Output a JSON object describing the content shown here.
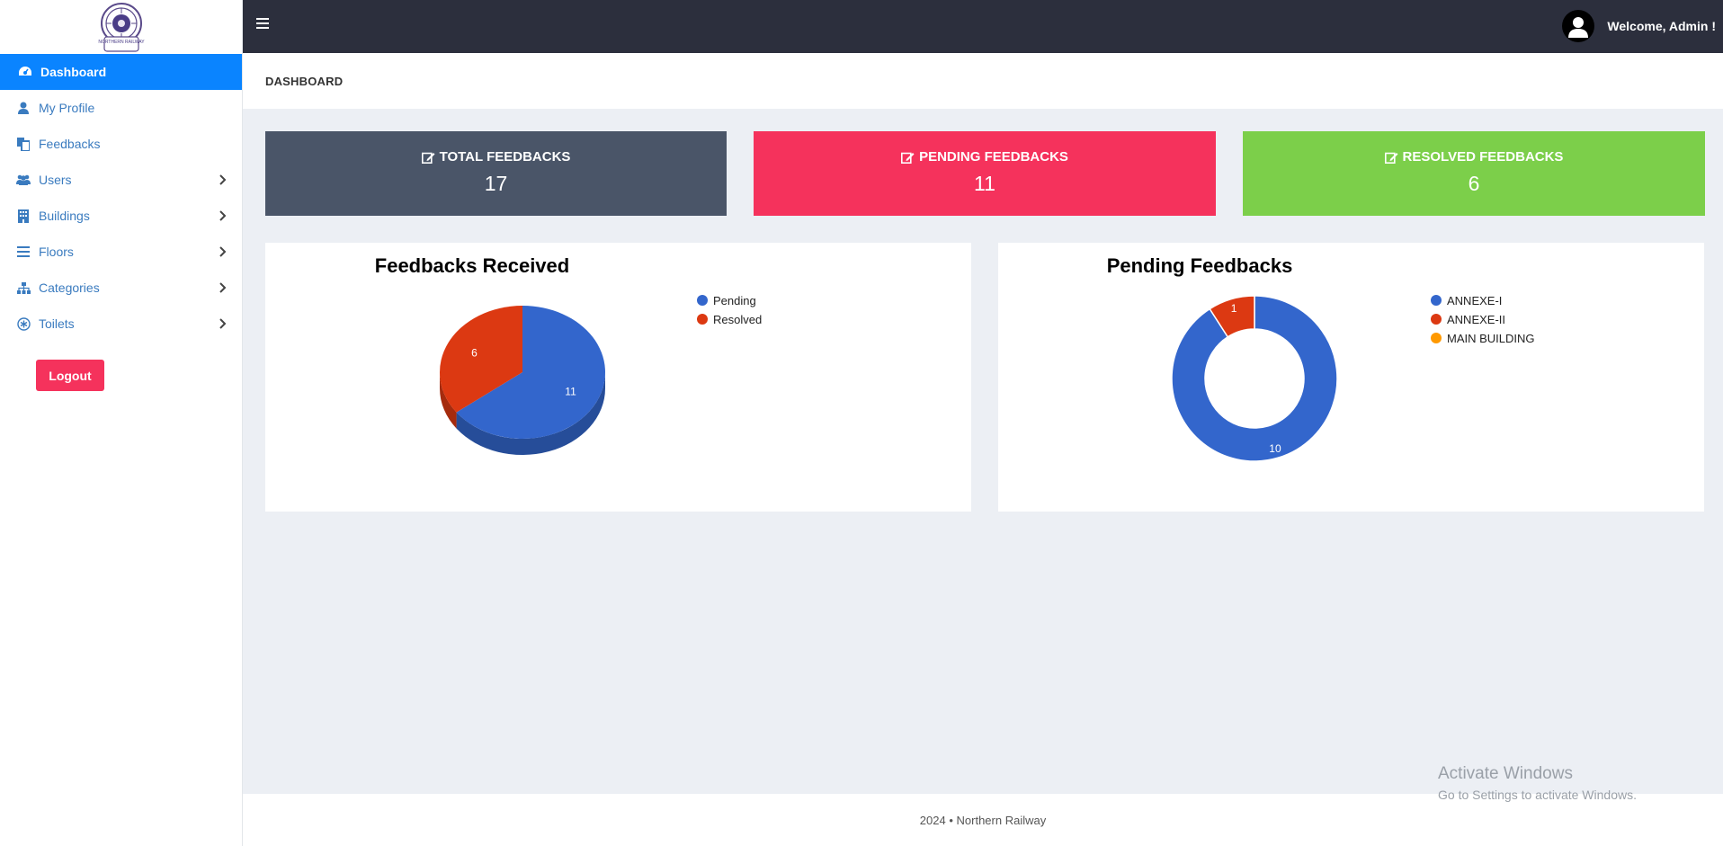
{
  "sidebar": {
    "logo_text": "NORTHERN RAILWAY",
    "items": [
      {
        "label": "Dashboard",
        "icon": "dashboard-icon",
        "active": true
      },
      {
        "label": "My Profile",
        "icon": "user-icon"
      },
      {
        "label": "Feedbacks",
        "icon": "copy-icon"
      },
      {
        "label": "Users",
        "icon": "users-icon",
        "has_submenu": true
      },
      {
        "label": "Buildings",
        "icon": "building-icon",
        "has_submenu": true
      },
      {
        "label": "Floors",
        "icon": "bars-icon",
        "has_submenu": true
      },
      {
        "label": "Categories",
        "icon": "sitemap-icon",
        "has_submenu": true
      },
      {
        "label": "Toilets",
        "icon": "asterisk-icon",
        "has_submenu": true
      }
    ],
    "logout_label": "Logout"
  },
  "header": {
    "welcome_text": "Welcome, Admin !"
  },
  "page": {
    "title": "DASHBOARD"
  },
  "cards": {
    "total": {
      "label": "TOTAL FEEDBACKS",
      "value": "17"
    },
    "pending": {
      "label": "PENDING FEEDBACKS",
      "value": "11"
    },
    "resolved": {
      "label": "RESOLVED FEEDBACKS",
      "value": "6"
    }
  },
  "colors": {
    "blue": "#3366cc",
    "red": "#dc3912",
    "orange": "#ff9900",
    "sidebar_active": "#0a84ff",
    "header_bg": "#2c2f3d",
    "card_total": "#4a5568",
    "card_pending": "#f5325c",
    "card_resolved": "#7ccf4a"
  },
  "chart_data": [
    {
      "type": "pie",
      "title": "Feedbacks Received",
      "categories": [
        "Pending",
        "Resolved"
      ],
      "values": [
        11,
        6
      ],
      "colors": [
        "#3366cc",
        "#dc3912"
      ],
      "legend": "right",
      "style": "3d"
    },
    {
      "type": "pie",
      "title": "Pending Feedbacks",
      "categories": [
        "ANNEXE-I",
        "ANNEXE-II",
        "MAIN BUILDING"
      ],
      "values": [
        10,
        1,
        0
      ],
      "colors": [
        "#3366cc",
        "#dc3912",
        "#ff9900"
      ],
      "legend": "right",
      "style": "donut"
    }
  ],
  "footer": {
    "year": "2024",
    "separator": "•",
    "org": "Northern Railway"
  },
  "watermark": {
    "line1": "Activate Windows",
    "line2": "Go to Settings to activate Windows."
  }
}
